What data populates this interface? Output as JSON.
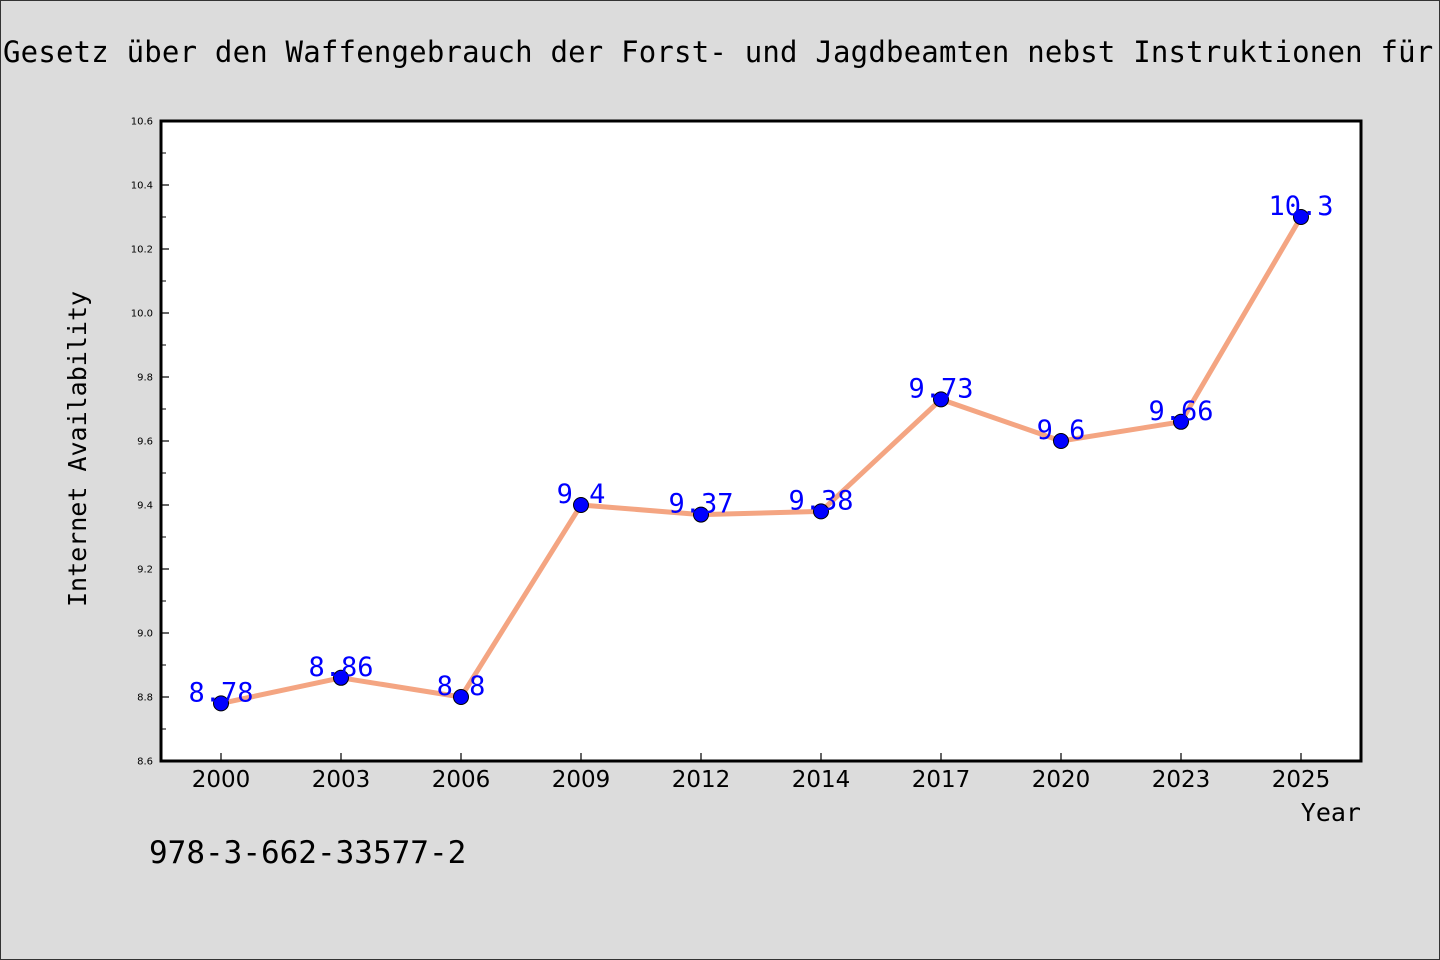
{
  "header": {
    "title": "Gesetz über den Waffengebrauch der Forst- und Jagdbeamten nebst Instruktionen für"
  },
  "footer": {
    "isbn": "978-3-662-33577-2"
  },
  "chart_data": {
    "type": "line",
    "title": "Gesetz über den Waffengebrauch der Forst- und Jagdbeamten nebst Instruktionen für",
    "xlabel": "Year",
    "ylabel": "Internet Availability",
    "categories": [
      "2000",
      "2003",
      "2006",
      "2009",
      "2012",
      "2014",
      "2017",
      "2020",
      "2023",
      "2025"
    ],
    "series": [
      {
        "values": [
          8.78,
          8.86,
          8.8,
          9.4,
          9.37,
          9.38,
          9.73,
          9.6,
          9.66,
          10.3
        ],
        "data_labels": [
          "8.78",
          "8.86",
          "8.8",
          "9.4",
          "9.37",
          "9.38",
          "9.73",
          "9.6",
          "9.66",
          "10.3"
        ],
        "line_color": "#f4a582",
        "marker_color": "#0000ff",
        "label_color": "#0000ff"
      }
    ],
    "ylim": [
      8.6,
      10.6
    ],
    "y_ticks": [
      "8.6",
      "8.8",
      "9.0",
      "9.2",
      "9.4",
      "9.6",
      "9.8",
      "10.0",
      "10.2",
      "10.4",
      "10.6"
    ],
    "y_tick_values": [
      8.6,
      8.8,
      9.0,
      9.2,
      9.4,
      9.6,
      9.8,
      10.0,
      10.2,
      10.4,
      10.6
    ],
    "grid": false,
    "legend": "none"
  }
}
